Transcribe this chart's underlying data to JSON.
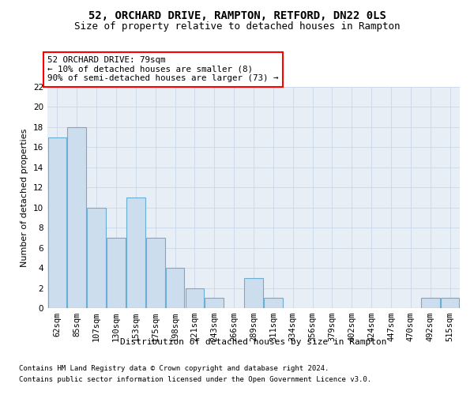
{
  "title1": "52, ORCHARD DRIVE, RAMPTON, RETFORD, DN22 0LS",
  "title2": "Size of property relative to detached houses in Rampton",
  "xlabel": "Distribution of detached houses by size in Rampton",
  "ylabel": "Number of detached properties",
  "categories": [
    "62sqm",
    "85sqm",
    "107sqm",
    "130sqm",
    "153sqm",
    "175sqm",
    "198sqm",
    "221sqm",
    "243sqm",
    "266sqm",
    "289sqm",
    "311sqm",
    "334sqm",
    "356sqm",
    "379sqm",
    "402sqm",
    "424sqm",
    "447sqm",
    "470sqm",
    "492sqm",
    "515sqm"
  ],
  "values": [
    17,
    18,
    10,
    7,
    11,
    7,
    4,
    2,
    1,
    0,
    3,
    1,
    0,
    0,
    0,
    0,
    0,
    0,
    0,
    1,
    1
  ],
  "bar_color": "#ccdded",
  "bar_edge_color": "#6aaed6",
  "annotation_text_line1": "52 ORCHARD DRIVE: 79sqm",
  "annotation_text_line2": "← 10% of detached houses are smaller (8)",
  "annotation_text_line3": "90% of semi-detached houses are larger (73) →",
  "annotation_box_facecolor": "white",
  "annotation_box_edgecolor": "red",
  "ylim": [
    0,
    22
  ],
  "yticks": [
    0,
    2,
    4,
    6,
    8,
    10,
    12,
    14,
    16,
    18,
    20,
    22
  ],
  "footnote1": "Contains HM Land Registry data © Crown copyright and database right 2024.",
  "footnote2": "Contains public sector information licensed under the Open Government Licence v3.0.",
  "grid_color": "#c8d8e8",
  "background_color": "#e8eef6",
  "title1_fontsize": 10,
  "title2_fontsize": 9,
  "ylabel_fontsize": 8,
  "xlabel_fontsize": 8,
  "tick_fontsize": 7.5,
  "footnote_fontsize": 6.5
}
